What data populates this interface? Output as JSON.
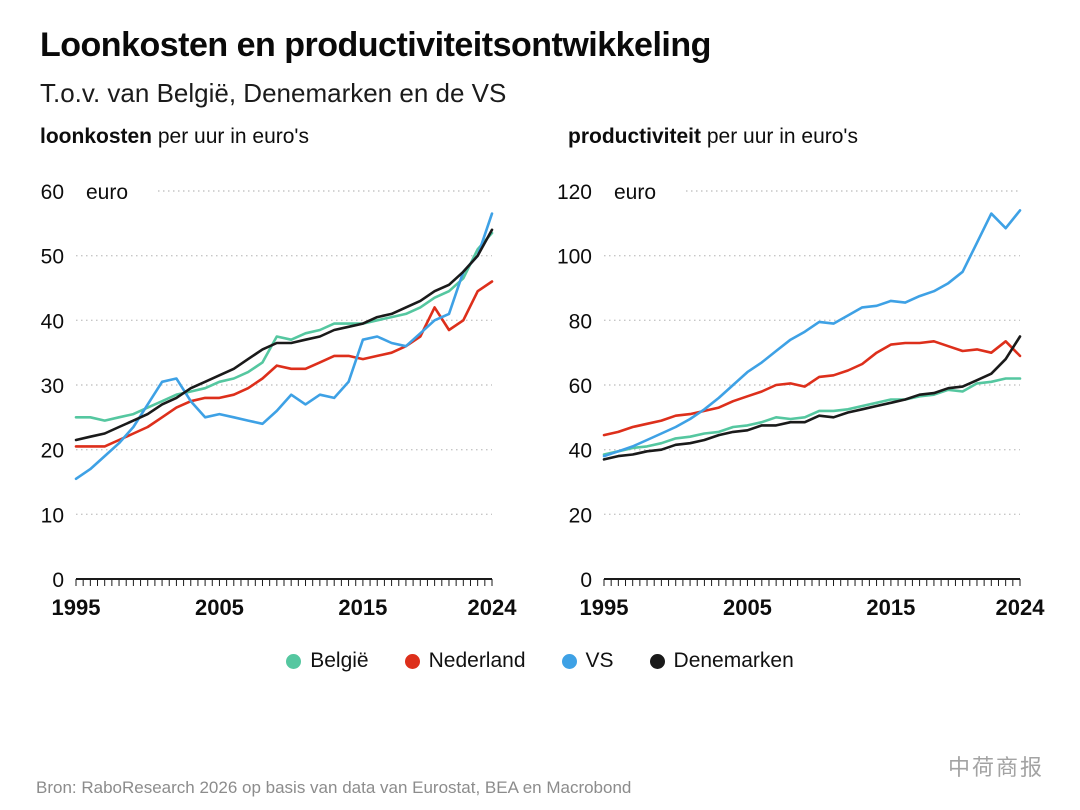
{
  "header": {
    "title": "Loonkosten en productiviteitsontwikkeling",
    "subtitle": "T.o.v. van België, Denemarken en de VS"
  },
  "chart_data": [
    {
      "type": "line",
      "title_bold": "loonkosten",
      "title_rest": " per uur in euro's",
      "unit": "euro",
      "x_start": 1995,
      "x_end": 2024,
      "ylim": [
        0,
        60
      ],
      "yticks": [
        60,
        50,
        40,
        30,
        20,
        10,
        0
      ],
      "xticks": [
        1995,
        2005,
        2015,
        2024
      ],
      "grid": true,
      "legend_position": "bottom",
      "series": [
        {
          "name": "België",
          "color": "#55c7a0",
          "values": [
            25,
            25,
            24.5,
            25,
            25.5,
            26.5,
            27.5,
            28.5,
            29,
            29.5,
            30.5,
            31,
            32,
            33.5,
            37.5,
            37,
            38,
            38.5,
            39.5,
            39.5,
            39.5,
            40,
            40.5,
            41,
            42,
            43.5,
            44.5,
            46.5,
            51,
            53.5
          ]
        },
        {
          "name": "Nederland",
          "color": "#dd2f1b",
          "values": [
            20.5,
            20.5,
            20.5,
            21.5,
            22.5,
            23.5,
            25,
            26.5,
            27.5,
            28,
            28,
            28.5,
            29.5,
            31,
            33,
            32.5,
            32.5,
            33.5,
            34.5,
            34.5,
            34,
            34.5,
            35,
            36,
            37.5,
            42,
            38.5,
            40,
            44.5,
            46
          ]
        },
        {
          "name": "VS",
          "color": "#3ea1e5",
          "values": [
            15.5,
            17,
            19,
            21,
            23.5,
            27,
            30.5,
            31,
            27.5,
            25,
            25.5,
            25,
            24.5,
            24,
            26,
            28.5,
            27,
            28.5,
            28,
            30.5,
            37,
            37.5,
            36.5,
            36,
            38,
            40,
            41,
            47.5,
            50,
            56.5
          ]
        },
        {
          "name": "Denemarken",
          "color": "#1a1a1a",
          "values": [
            21.5,
            22,
            22.5,
            23.5,
            24.5,
            25.5,
            27,
            28,
            29.5,
            30.5,
            31.5,
            32.5,
            34,
            35.5,
            36.5,
            36.5,
            37,
            37.5,
            38.5,
            39,
            39.5,
            40.5,
            41,
            42,
            43,
            44.5,
            45.5,
            47.5,
            50,
            54
          ]
        }
      ]
    },
    {
      "type": "line",
      "title_bold": "productiviteit",
      "title_rest": " per uur in euro's",
      "unit": "euro",
      "x_start": 1995,
      "x_end": 2024,
      "ylim": [
        0,
        120
      ],
      "yticks": [
        120,
        100,
        80,
        60,
        40,
        20,
        0
      ],
      "xticks": [
        1995,
        2005,
        2015,
        2024
      ],
      "grid": true,
      "legend_position": "bottom",
      "series": [
        {
          "name": "België",
          "color": "#55c7a0",
          "values": [
            38.5,
            39.5,
            40.5,
            41,
            42,
            43.5,
            44,
            45,
            45.5,
            47,
            47.5,
            48.5,
            50,
            49.5,
            50,
            52,
            52,
            52.5,
            53.5,
            54.5,
            55.5,
            55.5,
            56.5,
            57,
            58.5,
            58,
            60.5,
            61,
            62,
            62
          ]
        },
        {
          "name": "Nederland",
          "color": "#dd2f1b",
          "values": [
            44.5,
            45.5,
            47,
            48,
            49,
            50.5,
            51,
            52,
            53,
            55,
            56.5,
            58,
            60,
            60.5,
            59.5,
            62.5,
            63,
            64.5,
            66.5,
            70,
            72.5,
            73,
            73,
            73.5,
            72,
            70.5,
            71,
            70,
            73.5,
            69
          ]
        },
        {
          "name": "VS",
          "color": "#3ea1e5",
          "values": [
            38,
            39.5,
            41,
            43,
            45,
            47,
            49.5,
            52.5,
            56,
            60,
            64,
            67,
            70.5,
            74,
            76.5,
            79.5,
            79,
            81.5,
            84,
            84.5,
            86,
            85.5,
            87.5,
            89,
            91.5,
            95,
            104,
            113,
            108.5,
            114
          ]
        },
        {
          "name": "Denemarken",
          "color": "#1a1a1a",
          "values": [
            37,
            38,
            38.5,
            39.5,
            40,
            41.5,
            42,
            43,
            44.5,
            45.5,
            46,
            47.5,
            47.5,
            48.5,
            48.5,
            50.5,
            50,
            51.5,
            52.5,
            53.5,
            54.5,
            55.5,
            57,
            57.5,
            59,
            59.5,
            61.5,
            63.5,
            68,
            75
          ]
        }
      ]
    }
  ],
  "footer": {
    "source": "Bron: RaboResearch 2026 op basis van data van Eurostat, BEA en Macrobond"
  },
  "watermark": {
    "text": "中荷商报"
  }
}
